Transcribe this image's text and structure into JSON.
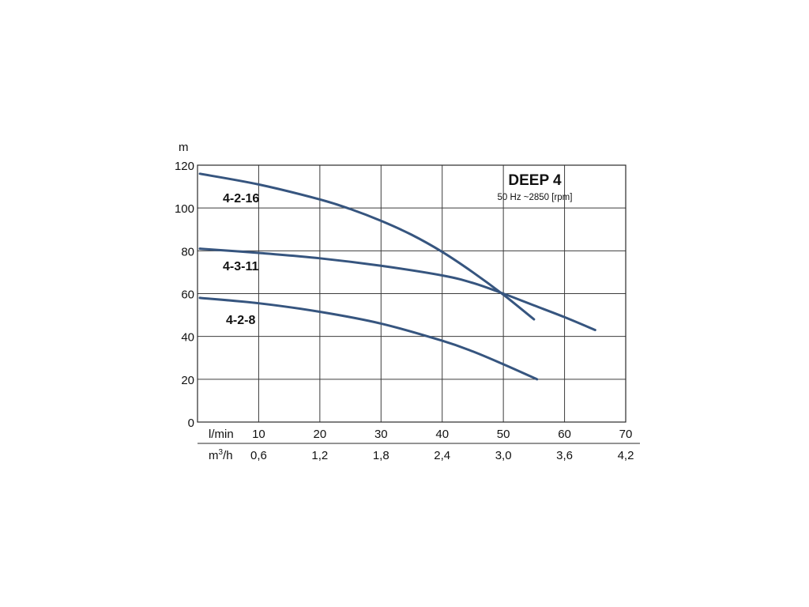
{
  "chart_data": {
    "type": "line",
    "title": "DEEP 4",
    "subtitle": "50 Hz ~2850 [rpm]",
    "ylabel": "m",
    "xlabel_primary": "l/min",
    "xlabel_secondary_main": "m",
    "xlabel_secondary_sup": "3",
    "xlabel_secondary_tail": "/h",
    "xlim": [
      0,
      70
    ],
    "ylim": [
      0,
      120
    ],
    "y_ticks": [
      "0",
      "20",
      "40",
      "60",
      "80",
      "100",
      "120"
    ],
    "x_ticks_primary": [
      "10",
      "20",
      "30",
      "40",
      "50",
      "60",
      "70"
    ],
    "x_ticks_secondary": [
      "0,6",
      "1,2",
      "1,8",
      "2,4",
      "3,0",
      "3,6",
      "4,2"
    ],
    "grid": true,
    "line_color": "#36557f",
    "series": [
      {
        "name": "4-2-16",
        "x": [
          0,
          10,
          20,
          25,
          30,
          35,
          40,
          45,
          50,
          55
        ],
        "y": [
          116,
          111,
          104,
          99.5,
          94,
          87.5,
          79.5,
          70,
          59.5,
          48
        ]
      },
      {
        "name": "4-3-11",
        "x": [
          0,
          10,
          20,
          30,
          40,
          45,
          50,
          55,
          60,
          65
        ],
        "y": [
          81,
          79,
          76.5,
          73,
          68.5,
          65,
          60,
          54.5,
          49,
          43
        ]
      },
      {
        "name": "4-2-8",
        "x": [
          0,
          10,
          20,
          30,
          40,
          45,
          50,
          55.5
        ],
        "y": [
          58,
          55.5,
          51.5,
          46,
          38,
          33,
          27,
          20
        ]
      }
    ]
  }
}
